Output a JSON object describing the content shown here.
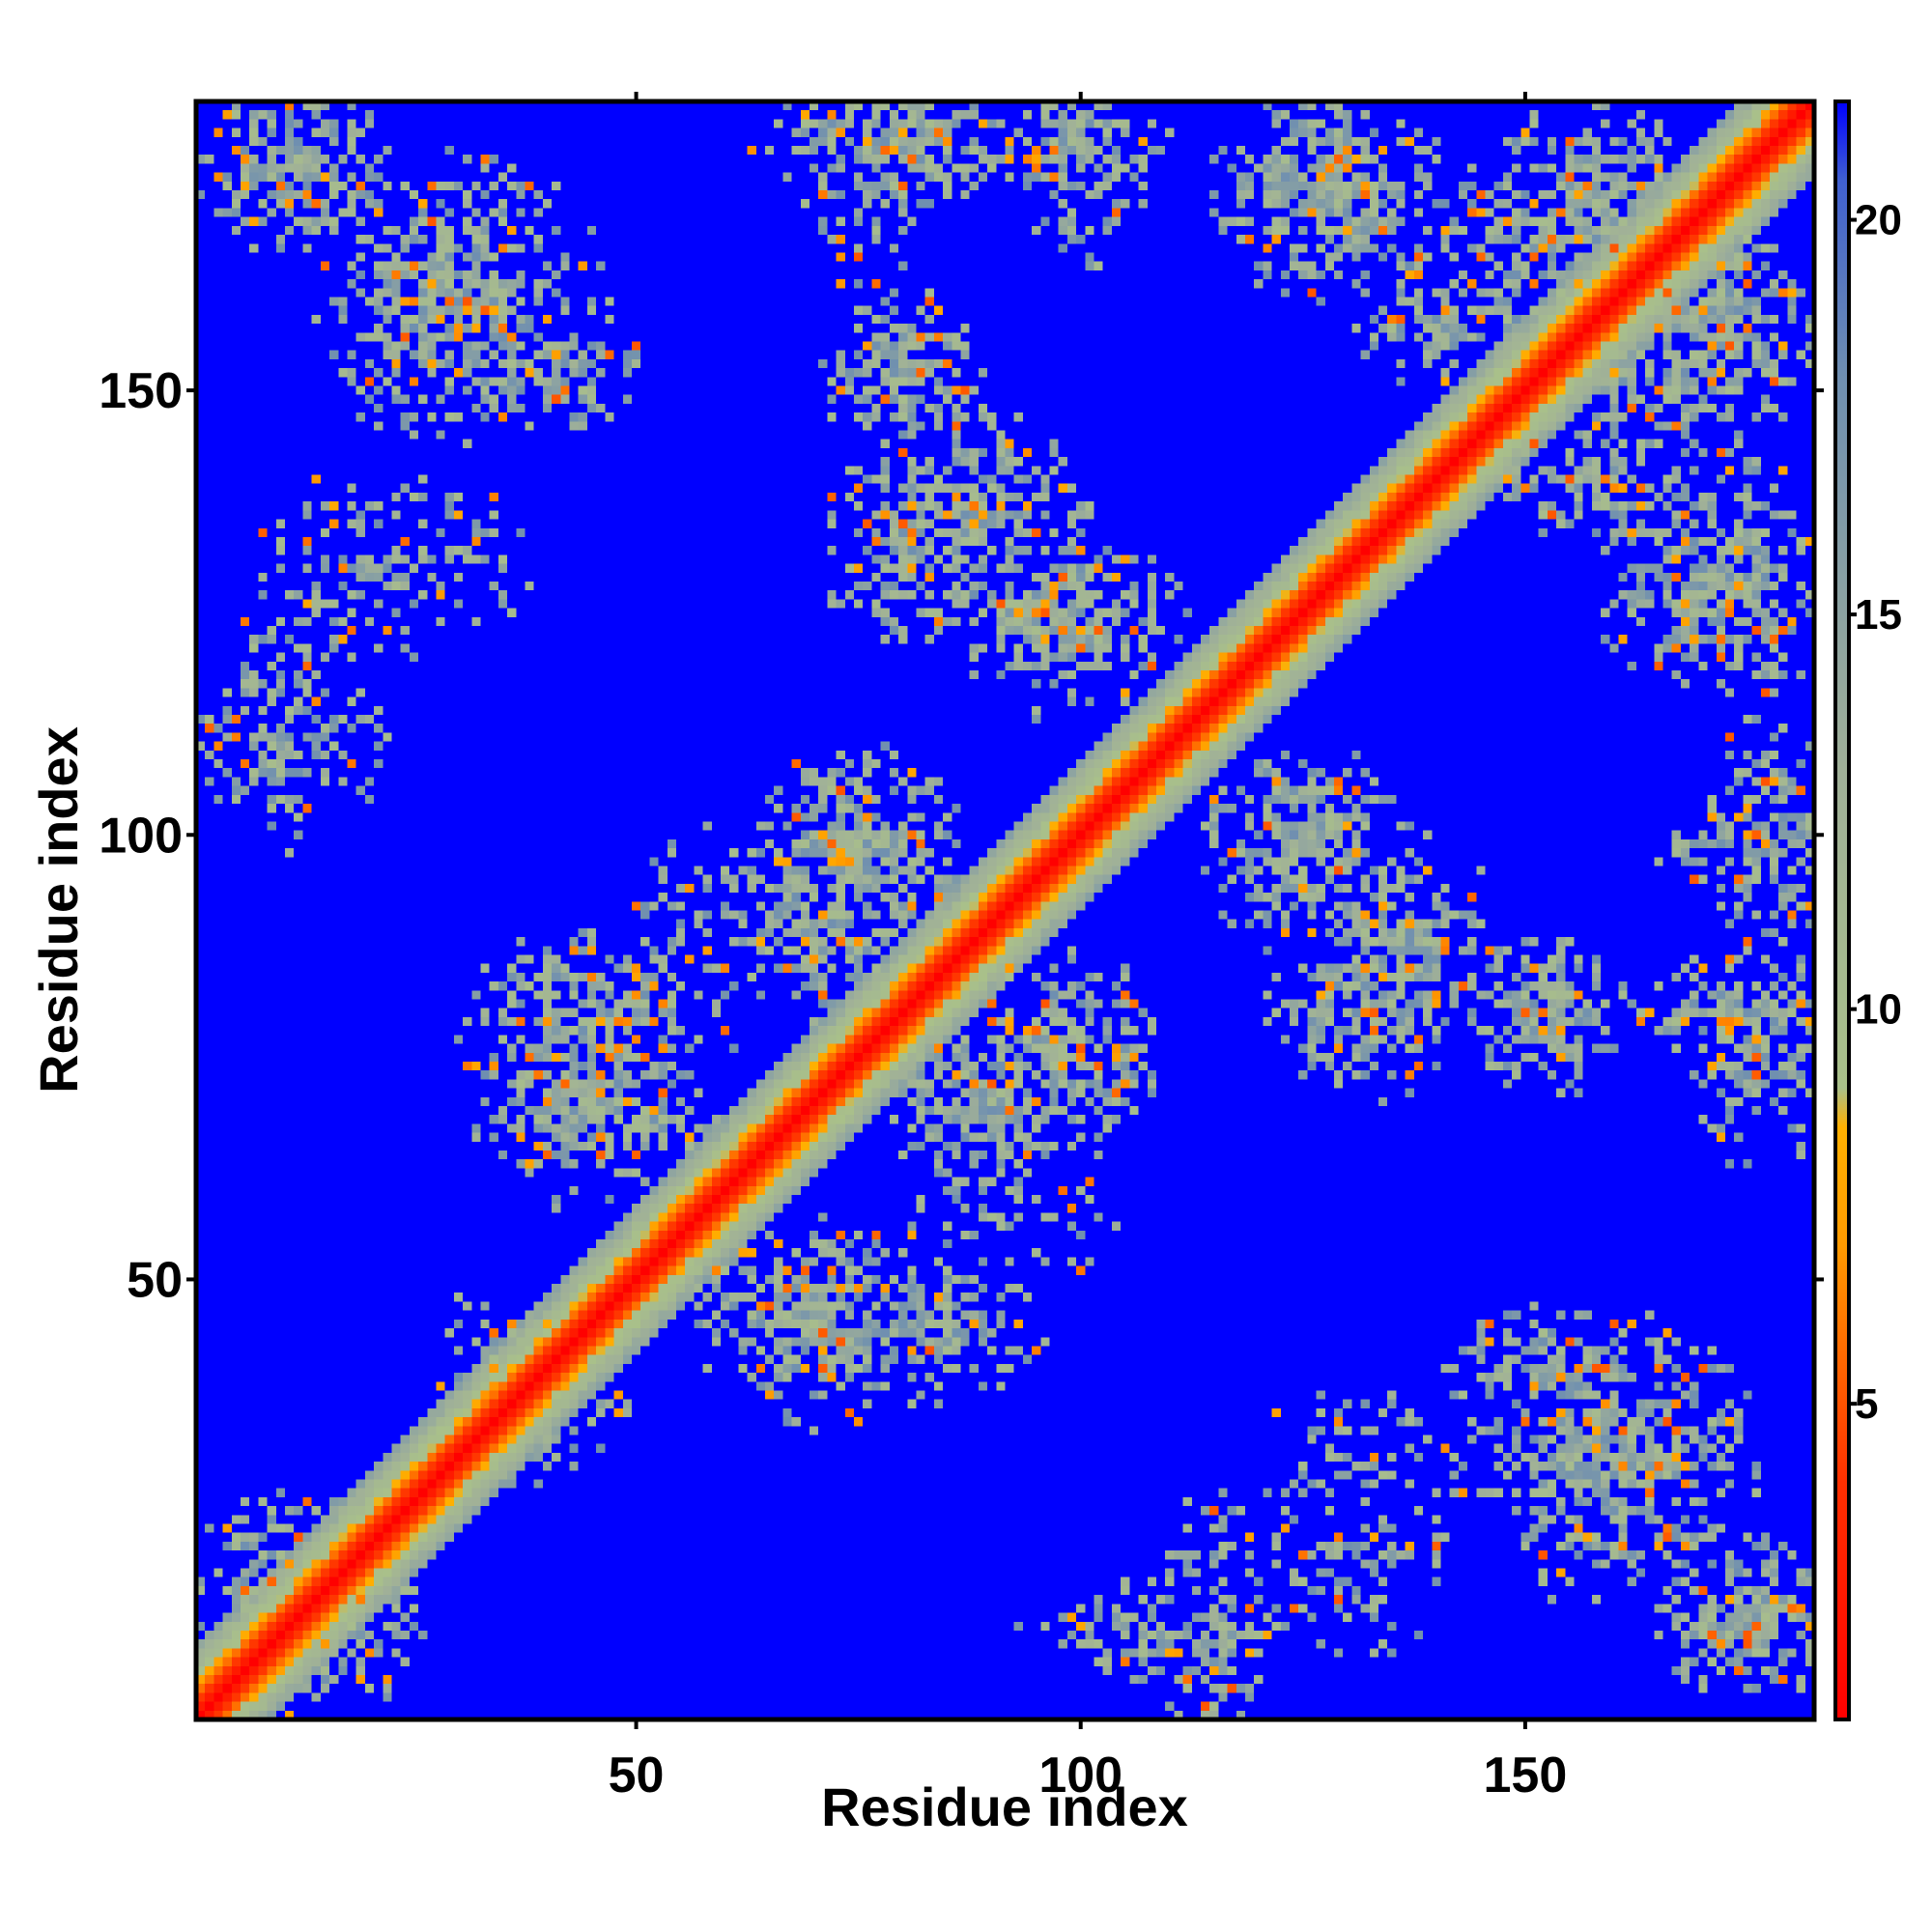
{
  "chart_data": {
    "type": "heatmap",
    "title": "",
    "xlabel": "Residue index",
    "ylabel": "Residue index",
    "xlim": [
      1,
      182
    ],
    "ylim": [
      1,
      182
    ],
    "n_residues": 182,
    "x_ticks": [
      50,
      100,
      150
    ],
    "y_ticks": [
      50,
      100,
      150
    ],
    "colorbar": {
      "range": [
        1,
        21.5
      ],
      "ticks": [
        5,
        10,
        15,
        20
      ],
      "stops": [
        {
          "value": 1,
          "color": "#ff0000"
        },
        {
          "value": 4,
          "color": "#ff3000"
        },
        {
          "value": 7,
          "color": "#ff9a00"
        },
        {
          "value": 8.5,
          "color": "#ffb000"
        },
        {
          "value": 9,
          "color": "#a9c08a"
        },
        {
          "value": 13,
          "color": "#a0b098"
        },
        {
          "value": 18,
          "color": "#6f8fb0"
        },
        {
          "value": 20.5,
          "color": "#4060d0"
        },
        {
          "value": 21.5,
          "color": "#0000ff"
        }
      ]
    },
    "background_color": "#0000ff",
    "diagonal_band": {
      "core_value": 1,
      "halfwidth": 8
    },
    "contact_patches": [
      {
        "x": 12,
        "y": 175,
        "rx": 10,
        "ry": 8,
        "density": 0.75
      },
      {
        "x": 30,
        "y": 160,
        "rx": 12,
        "ry": 8,
        "density": 0.7
      },
      {
        "x": 40,
        "y": 152,
        "rx": 10,
        "ry": 6,
        "density": 0.6
      },
      {
        "x": 10,
        "y": 115,
        "rx": 6,
        "ry": 14,
        "density": 0.5
      },
      {
        "x": 28,
        "y": 132,
        "rx": 12,
        "ry": 8,
        "density": 0.35
      },
      {
        "x": 80,
        "y": 178,
        "rx": 14,
        "ry": 6,
        "density": 0.7
      },
      {
        "x": 100,
        "y": 176,
        "rx": 10,
        "ry": 6,
        "density": 0.6
      },
      {
        "x": 80,
        "y": 152,
        "rx": 7,
        "ry": 8,
        "density": 0.7
      },
      {
        "x": 88,
        "y": 136,
        "rx": 10,
        "ry": 10,
        "density": 0.7
      },
      {
        "x": 100,
        "y": 126,
        "rx": 10,
        "ry": 8,
        "density": 0.65
      },
      {
        "x": 128,
        "y": 172,
        "rx": 12,
        "ry": 10,
        "density": 0.7
      },
      {
        "x": 158,
        "y": 172,
        "rx": 10,
        "ry": 10,
        "density": 0.7
      },
      {
        "x": 140,
        "y": 158,
        "rx": 10,
        "ry": 6,
        "density": 0.6
      },
      {
        "x": 168,
        "y": 152,
        "rx": 12,
        "ry": 8,
        "density": 0.6
      },
      {
        "x": 175,
        "y": 128,
        "rx": 8,
        "ry": 12,
        "density": 0.65
      },
      {
        "x": 178,
        "y": 100,
        "rx": 6,
        "ry": 12,
        "density": 0.6
      },
      {
        "x": 176,
        "y": 76,
        "rx": 7,
        "ry": 12,
        "density": 0.55
      },
      {
        "x": 75,
        "y": 98,
        "rx": 10,
        "ry": 10,
        "density": 0.75
      },
      {
        "x": 90,
        "y": 70,
        "rx": 10,
        "ry": 10,
        "density": 0.7
      },
      {
        "x": 45,
        "y": 80,
        "rx": 14,
        "ry": 8,
        "density": 0.6
      },
      {
        "x": 58,
        "y": 92,
        "rx": 10,
        "ry": 8,
        "density": 0.3
      },
      {
        "x": 70,
        "y": 45,
        "rx": 12,
        "ry": 10,
        "density": 0.7
      },
      {
        "x": 85,
        "y": 48,
        "rx": 10,
        "ry": 6,
        "density": 0.35
      },
      {
        "x": 125,
        "y": 98,
        "rx": 10,
        "ry": 10,
        "density": 0.7
      },
      {
        "x": 132,
        "y": 82,
        "rx": 10,
        "ry": 10,
        "density": 0.65
      },
      {
        "x": 152,
        "y": 80,
        "rx": 8,
        "ry": 8,
        "density": 0.7
      },
      {
        "x": 160,
        "y": 30,
        "rx": 14,
        "ry": 14,
        "density": 0.7
      },
      {
        "x": 110,
        "y": 10,
        "rx": 14,
        "ry": 6,
        "density": 0.55
      },
      {
        "x": 130,
        "y": 18,
        "rx": 10,
        "ry": 10,
        "density": 0.35
      },
      {
        "x": 12,
        "y": 15,
        "rx": 10,
        "ry": 10,
        "density": 0.7
      },
      {
        "x": 40,
        "y": 35,
        "rx": 8,
        "ry": 8,
        "density": 0.4
      }
    ]
  }
}
